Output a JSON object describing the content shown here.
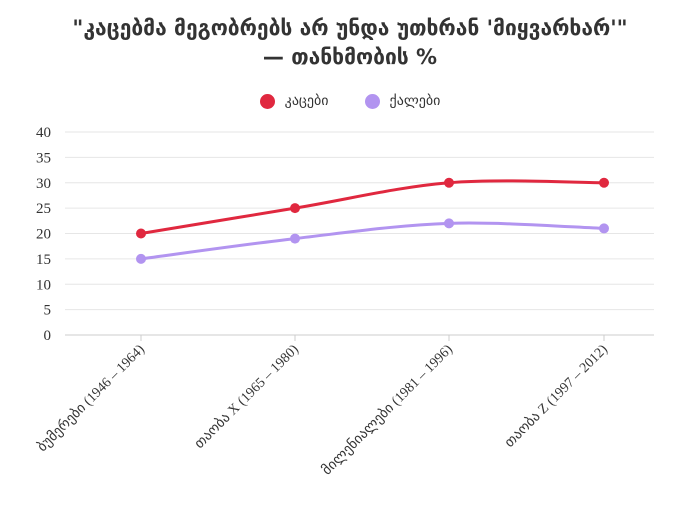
{
  "chart_data": {
    "type": "line",
    "title_line1": "\"კაცებმა მეგობრებს არ უნდა უთხრან 'მიყვარხარ'\"",
    "title_line2": "— თანხმობის %",
    "categories": [
      "ბუმერები (1946 – 1964)",
      "თაობა X (1965 – 1980)",
      "მილენიალები (1981 – 1996)",
      "თაობა Z (1997 – 2012)"
    ],
    "series": [
      {
        "name": "კაცები",
        "values": [
          20,
          25,
          30,
          30
        ],
        "color": "#e0283f"
      },
      {
        "name": "ქალები",
        "values": [
          15,
          19,
          22,
          21
        ],
        "color": "#b294f0"
      }
    ],
    "y_ticks": [
      "0",
      "5",
      "10",
      "15",
      "20",
      "25",
      "30",
      "35",
      "40"
    ],
    "ylim": [
      0,
      40
    ],
    "grid": true,
    "legend_position": "top-center"
  }
}
